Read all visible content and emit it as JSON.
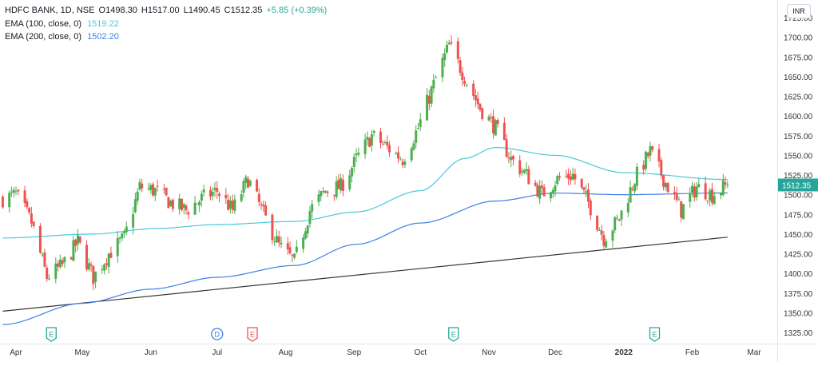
{
  "header": {
    "symbol": "HDFC BANK, 1D, NSE",
    "ohlc": [
      {
        "key": "O",
        "value": "1498.30"
      },
      {
        "key": "H",
        "value": "1517.00"
      },
      {
        "key": "L",
        "value": "1490.45"
      },
      {
        "key": "C",
        "value": "1512.35"
      }
    ],
    "change": "+5.85 (+0.39%)",
    "indicators": [
      {
        "label": "EMA (100, close, 0)",
        "value": "1519.22",
        "color": "#48c8d8"
      },
      {
        "label": "EMA (200, close, 0)",
        "value": "1502.20",
        "color": "#3d7fe6"
      }
    ]
  },
  "currency_label": "INR",
  "price_tag": "1512.35",
  "colors": {
    "up": "#26a69a",
    "down": "#ef5350",
    "up_alt": "#4caf50",
    "ema100": "#48c8d8",
    "ema200": "#3d7fe6",
    "trendline": "#333333",
    "earnings_marker": "#26a69a",
    "dividend_marker": "#3d7fe6",
    "split_marker": "#ef5350",
    "text": "#131722",
    "axis_text": "#333333",
    "price_tag_bg": "#26a69a"
  },
  "events": [
    {
      "icon": "earnings-icon",
      "letter": "E",
      "date": "2021-04-17",
      "type": "earnings"
    },
    {
      "icon": "dividend-icon",
      "letter": "D",
      "date": "2021-07-01",
      "type": "dividend"
    },
    {
      "icon": "earnings-icon",
      "letter": "E",
      "date": "2021-07-17",
      "type": "earnings-upcoming"
    },
    {
      "icon": "earnings-icon",
      "letter": "E",
      "date": "2021-10-16",
      "type": "earnings"
    },
    {
      "icon": "earnings-icon",
      "letter": "E",
      "date": "2022-01-15",
      "type": "earnings"
    }
  ],
  "chart_data": {
    "type": "candlestick",
    "symbol": "HDFC BANK",
    "interval": "1D",
    "exchange": "NSE",
    "x_ticks": [
      "Apr",
      "May",
      "Jun",
      "Jul",
      "Aug",
      "Sep",
      "Oct",
      "Nov",
      "Dec",
      "2022",
      "Feb",
      "Mar"
    ],
    "x_tick_dates": [
      "2021-04-01",
      "2021-05-01",
      "2021-06-01",
      "2021-07-01",
      "2021-08-01",
      "2021-09-01",
      "2021-10-01",
      "2021-11-01",
      "2021-12-01",
      "2022-01-01",
      "2022-02-01",
      "2022-03-01"
    ],
    "y_ticks": [
      1325,
      1350,
      1375,
      1400,
      1425,
      1450,
      1475,
      1500,
      1525,
      1550,
      1575,
      1600,
      1625,
      1650,
      1675,
      1700,
      1725
    ],
    "y_tick_labels": [
      "1325.00",
      "1350.00",
      "1375.00",
      "1400.00",
      "1425.00",
      "1450.00",
      "1475.00",
      "1500.00",
      "1525.00",
      "1550.00",
      "1575.00",
      "1600.00",
      "1625.00",
      "1650.00",
      "1675.00",
      "1700.00",
      "1725.00"
    ],
    "ylim": [
      1315,
      1735
    ],
    "last_close": 1512.35,
    "closes_weekly": [
      {
        "date": "2021-03-26",
        "close": 1495
      },
      {
        "date": "2021-04-01",
        "close": 1500
      },
      {
        "date": "2021-04-08",
        "close": 1465
      },
      {
        "date": "2021-04-15",
        "close": 1395
      },
      {
        "date": "2021-04-22",
        "close": 1410
      },
      {
        "date": "2021-04-29",
        "close": 1440
      },
      {
        "date": "2021-05-06",
        "close": 1395
      },
      {
        "date": "2021-05-13",
        "close": 1425
      },
      {
        "date": "2021-05-20",
        "close": 1445
      },
      {
        "date": "2021-05-27",
        "close": 1510
      },
      {
        "date": "2021-06-03",
        "close": 1505
      },
      {
        "date": "2021-06-10",
        "close": 1490
      },
      {
        "date": "2021-06-17",
        "close": 1480
      },
      {
        "date": "2021-06-24",
        "close": 1495
      },
      {
        "date": "2021-07-01",
        "close": 1505
      },
      {
        "date": "2021-07-08",
        "close": 1480
      },
      {
        "date": "2021-07-15",
        "close": 1520
      },
      {
        "date": "2021-07-22",
        "close": 1475
      },
      {
        "date": "2021-07-29",
        "close": 1435
      },
      {
        "date": "2021-08-05",
        "close": 1415
      },
      {
        "date": "2021-08-12",
        "close": 1480
      },
      {
        "date": "2021-08-19",
        "close": 1505
      },
      {
        "date": "2021-08-26",
        "close": 1510
      },
      {
        "date": "2021-09-02",
        "close": 1545
      },
      {
        "date": "2021-09-09",
        "close": 1575
      },
      {
        "date": "2021-09-16",
        "close": 1560
      },
      {
        "date": "2021-09-23",
        "close": 1545
      },
      {
        "date": "2021-09-30",
        "close": 1585
      },
      {
        "date": "2021-10-07",
        "close": 1640
      },
      {
        "date": "2021-10-14",
        "close": 1690
      },
      {
        "date": "2021-10-21",
        "close": 1650
      },
      {
        "date": "2021-10-28",
        "close": 1610
      },
      {
        "date": "2021-11-04",
        "close": 1585
      },
      {
        "date": "2021-11-11",
        "close": 1545
      },
      {
        "date": "2021-11-18",
        "close": 1525
      },
      {
        "date": "2021-11-25",
        "close": 1500
      },
      {
        "date": "2021-12-02",
        "close": 1520
      },
      {
        "date": "2021-12-09",
        "close": 1525
      },
      {
        "date": "2021-12-16",
        "close": 1490
      },
      {
        "date": "2021-12-23",
        "close": 1445
      },
      {
        "date": "2021-12-30",
        "close": 1470
      },
      {
        "date": "2022-01-06",
        "close": 1520
      },
      {
        "date": "2022-01-13",
        "close": 1555
      },
      {
        "date": "2022-01-20",
        "close": 1515
      },
      {
        "date": "2022-01-27",
        "close": 1480
      },
      {
        "date": "2022-02-03",
        "close": 1510
      },
      {
        "date": "2022-02-10",
        "close": 1500
      },
      {
        "date": "2022-02-17",
        "close": 1512.35
      }
    ],
    "ema100": [
      {
        "date": "2021-03-26",
        "value": 1445
      },
      {
        "date": "2021-05-06",
        "value": 1450
      },
      {
        "date": "2021-06-03",
        "value": 1457
      },
      {
        "date": "2021-07-01",
        "value": 1462
      },
      {
        "date": "2021-08-05",
        "value": 1466
      },
      {
        "date": "2021-09-02",
        "value": 1478
      },
      {
        "date": "2021-10-01",
        "value": 1505
      },
      {
        "date": "2021-10-21",
        "value": 1546
      },
      {
        "date": "2021-11-04",
        "value": 1560
      },
      {
        "date": "2021-12-01",
        "value": 1550
      },
      {
        "date": "2022-01-01",
        "value": 1528
      },
      {
        "date": "2022-02-17",
        "value": 1519.22
      }
    ],
    "ema200": [
      {
        "date": "2021-03-26",
        "value": 1335
      },
      {
        "date": "2021-05-01",
        "value": 1362
      },
      {
        "date": "2021-06-01",
        "value": 1380
      },
      {
        "date": "2021-07-01",
        "value": 1395
      },
      {
        "date": "2021-08-05",
        "value": 1410
      },
      {
        "date": "2021-09-02",
        "value": 1437
      },
      {
        "date": "2021-10-01",
        "value": 1464
      },
      {
        "date": "2021-11-04",
        "value": 1492
      },
      {
        "date": "2021-12-01",
        "value": 1502
      },
      {
        "date": "2022-01-01",
        "value": 1500
      },
      {
        "date": "2022-02-17",
        "value": 1502.2
      }
    ],
    "trendline": [
      {
        "date": "2021-03-26",
        "value": 1352
      },
      {
        "date": "2022-02-17",
        "value": 1446
      }
    ],
    "grid": false,
    "legend": "top-left"
  }
}
